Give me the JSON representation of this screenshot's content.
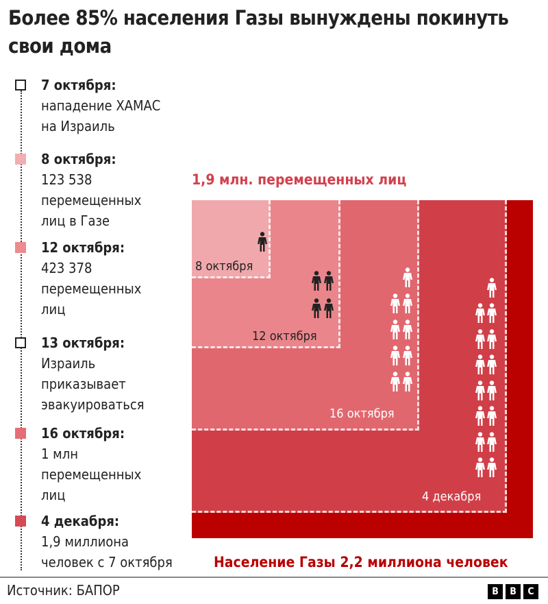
{
  "title": "Более 85% населения Газы вынуждены покинуть свои дома",
  "timeline": [
    {
      "date": "7 октября:",
      "text": "нападение ХАМАС\nна Израиль",
      "marker": "outline"
    },
    {
      "date": "8 октября:",
      "text": "123 538\nперемещенных\nлиц в Газе",
      "marker": "#f2aeb2"
    },
    {
      "date": "12 октября:",
      "text": "423 378\nперемещенных\nлиц",
      "marker": "#ec8c90"
    },
    {
      "date": "13 октября:",
      "text": "Израиль\nприказывает\nэвакуироваться",
      "marker": "outline"
    },
    {
      "date": "16 октября:",
      "text": "1 млн\nперемещенных\nлиц",
      "marker": "#e56e76"
    },
    {
      "date": "4 декабря:",
      "text": "1,9 миллиона\nчеловек с 7 октября",
      "marker": "#d44a55"
    }
  ],
  "diagram": {
    "displaced_label": "1,9 млн. перемещенных лиц",
    "population_label": "Население Газы 2,2 миллиона человек",
    "levels": [
      {
        "label": "8 октября",
        "color": "#f2aeb2",
        "value": 123538
      },
      {
        "label": "12 октября",
        "color": "#ec8c90",
        "value": 423378
      },
      {
        "label": "16 октября",
        "color": "#e56e76",
        "value": 1000000
      },
      {
        "label": "4 декабря",
        "color": "#d44a55",
        "value": 1900000
      }
    ],
    "population_color": "#bb0000",
    "population_value": 2200000
  },
  "footer": {
    "source": "Источник: БАПОР",
    "logo": [
      "B",
      "B",
      "C"
    ]
  }
}
